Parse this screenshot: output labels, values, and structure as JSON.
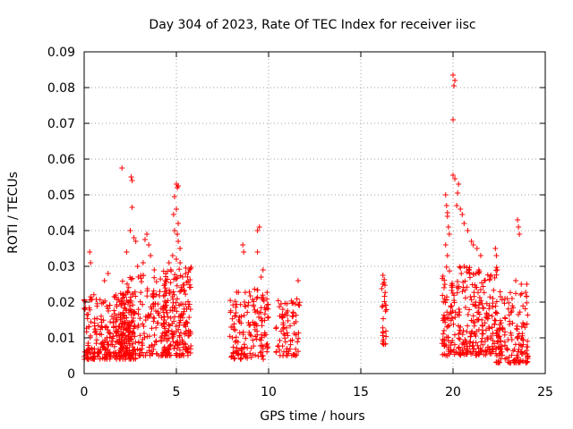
{
  "chart_data": {
    "type": "scatter",
    "title": "Day 304 of 2023, Rate Of TEC Index for receiver iisc",
    "xlabel": "GPS time / hours",
    "ylabel": "ROTI / TECUs",
    "xlim": [
      0,
      25
    ],
    "ylim": [
      0,
      0.09
    ],
    "x_ticks": [
      0,
      5,
      10,
      15,
      20,
      25
    ],
    "x_tick_labels": [
      "0",
      "5",
      "10",
      "15",
      "20",
      "25"
    ],
    "y_ticks": [
      0,
      0.01,
      0.02,
      0.03,
      0.04,
      0.05,
      0.06,
      0.07,
      0.08,
      0.09
    ],
    "y_tick_labels": [
      "0",
      "0.01",
      "0.02",
      "0.03",
      "0.04",
      "0.05",
      "0.06",
      "0.07",
      "0.08",
      "0.09"
    ],
    "grid": true,
    "marker": "plus",
    "marker_color": "#ff0000",
    "clusters": [
      {
        "x_range": [
          0.0,
          2.8
        ],
        "y_range": [
          0.004,
          0.023
        ],
        "count": 320
      },
      {
        "x_range": [
          2.0,
          4.6
        ],
        "y_range": [
          0.005,
          0.028
        ],
        "count": 200
      },
      {
        "x_range": [
          4.3,
          5.8
        ],
        "y_range": [
          0.005,
          0.03
        ],
        "count": 200
      },
      {
        "x_range": [
          7.9,
          10.0
        ],
        "y_range": [
          0.004,
          0.024
        ],
        "count": 160
      },
      {
        "x_range": [
          10.4,
          11.7
        ],
        "y_range": [
          0.005,
          0.022
        ],
        "count": 80
      },
      {
        "x_range": [
          16.1,
          16.4
        ],
        "y_range": [
          0.008,
          0.027
        ],
        "count": 25
      },
      {
        "x_range": [
          19.4,
          22.6
        ],
        "y_range": [
          0.005,
          0.03
        ],
        "count": 320
      },
      {
        "x_range": [
          22.3,
          24.1
        ],
        "y_range": [
          0.003,
          0.023
        ],
        "count": 140
      }
    ],
    "points": [
      [
        0.3,
        0.034
      ],
      [
        0.35,
        0.031
      ],
      [
        1.1,
        0.026
      ],
      [
        1.3,
        0.028
      ],
      [
        2.05,
        0.0575
      ],
      [
        2.3,
        0.034
      ],
      [
        2.55,
        0.055
      ],
      [
        2.6,
        0.054
      ],
      [
        2.6,
        0.0465
      ],
      [
        2.5,
        0.04
      ],
      [
        2.7,
        0.038
      ],
      [
        2.8,
        0.037
      ],
      [
        2.9,
        0.03
      ],
      [
        3.3,
        0.0375
      ],
      [
        3.4,
        0.039
      ],
      [
        3.5,
        0.036
      ],
      [
        3.6,
        0.033
      ],
      [
        3.2,
        0.031
      ],
      [
        3.8,
        0.029
      ],
      [
        4.6,
        0.031
      ],
      [
        4.8,
        0.033
      ],
      [
        4.85,
        0.0445
      ],
      [
        4.9,
        0.0495
      ],
      [
        5.0,
        0.053
      ],
      [
        5.05,
        0.052
      ],
      [
        5.1,
        0.0525
      ],
      [
        5.0,
        0.046
      ],
      [
        5.1,
        0.042
      ],
      [
        5.05,
        0.039
      ],
      [
        5.1,
        0.037
      ],
      [
        5.2,
        0.035
      ],
      [
        5.0,
        0.032
      ],
      [
        5.2,
        0.031
      ],
      [
        4.9,
        0.04
      ],
      [
        8.6,
        0.036
      ],
      [
        8.65,
        0.034
      ],
      [
        9.4,
        0.04
      ],
      [
        9.5,
        0.041
      ],
      [
        9.4,
        0.034
      ],
      [
        9.7,
        0.029
      ],
      [
        9.6,
        0.027
      ],
      [
        11.6,
        0.026
      ],
      [
        16.2,
        0.0275
      ],
      [
        16.2,
        0.025
      ],
      [
        16.2,
        0.019
      ],
      [
        16.2,
        0.009
      ],
      [
        19.6,
        0.05
      ],
      [
        19.65,
        0.047
      ],
      [
        19.7,
        0.045
      ],
      [
        19.7,
        0.044
      ],
      [
        19.75,
        0.041
      ],
      [
        19.8,
        0.039
      ],
      [
        19.6,
        0.036
      ],
      [
        19.7,
        0.033
      ],
      [
        20.0,
        0.0835
      ],
      [
        20.1,
        0.082
      ],
      [
        20.05,
        0.0805
      ],
      [
        20.0,
        0.071
      ],
      [
        20.0,
        0.0555
      ],
      [
        20.1,
        0.0545
      ],
      [
        20.3,
        0.053
      ],
      [
        20.25,
        0.0505
      ],
      [
        20.2,
        0.047
      ],
      [
        20.4,
        0.046
      ],
      [
        20.5,
        0.0445
      ],
      [
        20.6,
        0.042
      ],
      [
        20.8,
        0.04
      ],
      [
        21.0,
        0.037
      ],
      [
        21.1,
        0.036
      ],
      [
        21.3,
        0.035
      ],
      [
        21.5,
        0.033
      ],
      [
        20.6,
        0.03
      ],
      [
        20.9,
        0.028
      ],
      [
        21.4,
        0.029
      ],
      [
        21.7,
        0.026
      ],
      [
        22.3,
        0.035
      ],
      [
        22.35,
        0.033
      ],
      [
        22.4,
        0.029
      ],
      [
        23.5,
        0.043
      ],
      [
        23.55,
        0.041
      ],
      [
        23.6,
        0.039
      ],
      [
        23.4,
        0.026
      ],
      [
        23.7,
        0.025
      ],
      [
        24.0,
        0.025
      ],
      [
        23.2,
        0.021
      ]
    ]
  }
}
